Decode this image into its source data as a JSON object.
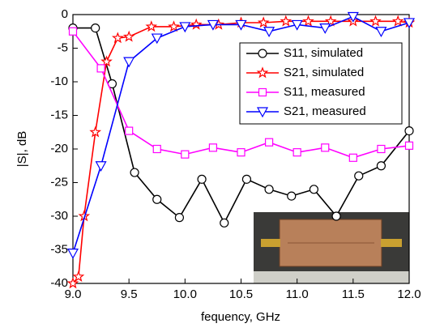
{
  "chart_data": {
    "type": "line",
    "xlabel": "fequency, GHz",
    "ylabel": "|S|, dB",
    "xlim": [
      9.0,
      12.0
    ],
    "xticks": [
      {
        "value": 9.0,
        "label": "9.0"
      },
      9.5,
      {
        "value": 10.0,
        "label": "10.0"
      },
      10.5,
      {
        "value": 11.0,
        "label": "11.0"
      },
      11.5,
      {
        "value": 12.0,
        "label": "12.0"
      }
    ],
    "ylim": [
      -40,
      0
    ],
    "yticks": [
      -40,
      -35,
      -30,
      -25,
      -20,
      -15,
      -10,
      -5,
      0
    ],
    "legend": "upper right",
    "series": [
      {
        "name": "S11, simulated",
        "color": "#000000",
        "marker": "circle",
        "x": [
          9.0,
          9.2,
          9.35,
          9.55,
          9.75,
          9.95,
          10.15,
          10.35,
          10.55,
          10.75,
          10.95,
          11.15,
          11.35,
          11.55,
          11.75,
          12.0
        ],
        "values": [
          -2,
          -2,
          -10.3,
          -23.5,
          -27.5,
          -30.2,
          -24.5,
          -31,
          -24.5,
          -26,
          -27,
          -26,
          -30,
          -24,
          -22.5,
          -17.3
        ]
      },
      {
        "name": "S21, simulated",
        "color": "#ff0000",
        "marker": "star",
        "x": [
          9.0,
          9.05,
          9.1,
          9.2,
          9.3,
          9.4,
          9.5,
          9.7,
          9.9,
          10.1,
          10.3,
          10.5,
          10.7,
          10.9,
          11.1,
          11.3,
          11.5,
          11.7,
          11.9,
          12.0
        ],
        "values": [
          -40,
          -39,
          -30,
          -17.5,
          -7,
          -3.5,
          -3.3,
          -1.8,
          -1.8,
          -1.5,
          -1.5,
          -1.2,
          -1.2,
          -1,
          -1,
          -1,
          -1,
          -1,
          -1,
          -1.2
        ]
      },
      {
        "name": "S11, measured",
        "color": "#ff00ff",
        "marker": "square",
        "x": [
          9.0,
          9.25,
          9.5,
          9.75,
          10.0,
          10.25,
          10.5,
          10.75,
          11.0,
          11.25,
          11.5,
          11.75,
          12.0
        ],
        "values": [
          -2.5,
          -8,
          -17.3,
          -20,
          -20.8,
          -19.8,
          -20.5,
          -19,
          -20.5,
          -19.8,
          -21.3,
          -20,
          -19.5
        ]
      },
      {
        "name": "S21, measured",
        "color": "#0000ff",
        "marker": "triangle-down",
        "x": [
          9.0,
          9.25,
          9.5,
          9.75,
          10.0,
          10.25,
          10.5,
          10.75,
          11.0,
          11.25,
          11.5,
          11.75,
          12.0
        ],
        "values": [
          -35.5,
          -22.5,
          -7,
          -3.5,
          -1.8,
          -1.5,
          -1.5,
          -2.5,
          -1.5,
          -2,
          -0.3,
          -2.5,
          -1.2
        ]
      }
    ]
  }
}
